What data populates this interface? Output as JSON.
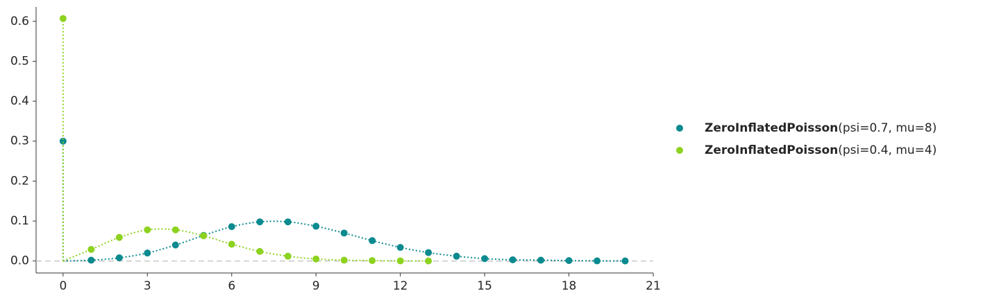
{
  "chart_data": {
    "type": "scatter",
    "xlim": [
      -0.96,
      21
    ],
    "ylim": [
      -0.03,
      0.636
    ],
    "xticks": [
      0,
      3,
      6,
      9,
      12,
      15,
      18,
      21
    ],
    "yticks": [
      {
        "value": 0,
        "label": "0.0"
      },
      0.1,
      0.2,
      0.3,
      0.4,
      0.5,
      0.6
    ],
    "legend": "right",
    "series": [
      {
        "name": "ZeroInflatedPoisson(psi=0.7, mu=8)",
        "color": "#0b8a8f",
        "x": [
          0,
          1,
          2,
          3,
          4,
          5,
          6,
          7,
          8,
          9,
          10,
          11,
          12,
          13,
          14,
          15,
          16,
          17,
          18,
          19,
          20
        ],
        "values": [
          0.3,
          0.002,
          0.008,
          0.02,
          0.04,
          0.064,
          0.086,
          0.098,
          0.098,
          0.087,
          0.07,
          0.051,
          0.034,
          0.021,
          0.012,
          0.006,
          0.003,
          0.002,
          0.001,
          0.0003,
          0.0001
        ]
      },
      {
        "name": "ZeroInflatedPoisson(psi=0.4, mu=4)",
        "color": "#8dd21f",
        "x": [
          0,
          1,
          2,
          3,
          4,
          5,
          6,
          7,
          8,
          9,
          10,
          11,
          12,
          13
        ],
        "values": [
          0.607,
          0.029,
          0.059,
          0.078,
          0.078,
          0.063,
          0.042,
          0.024,
          0.012,
          0.005,
          0.002,
          0.001,
          0.0003,
          0.0001
        ]
      }
    ]
  }
}
